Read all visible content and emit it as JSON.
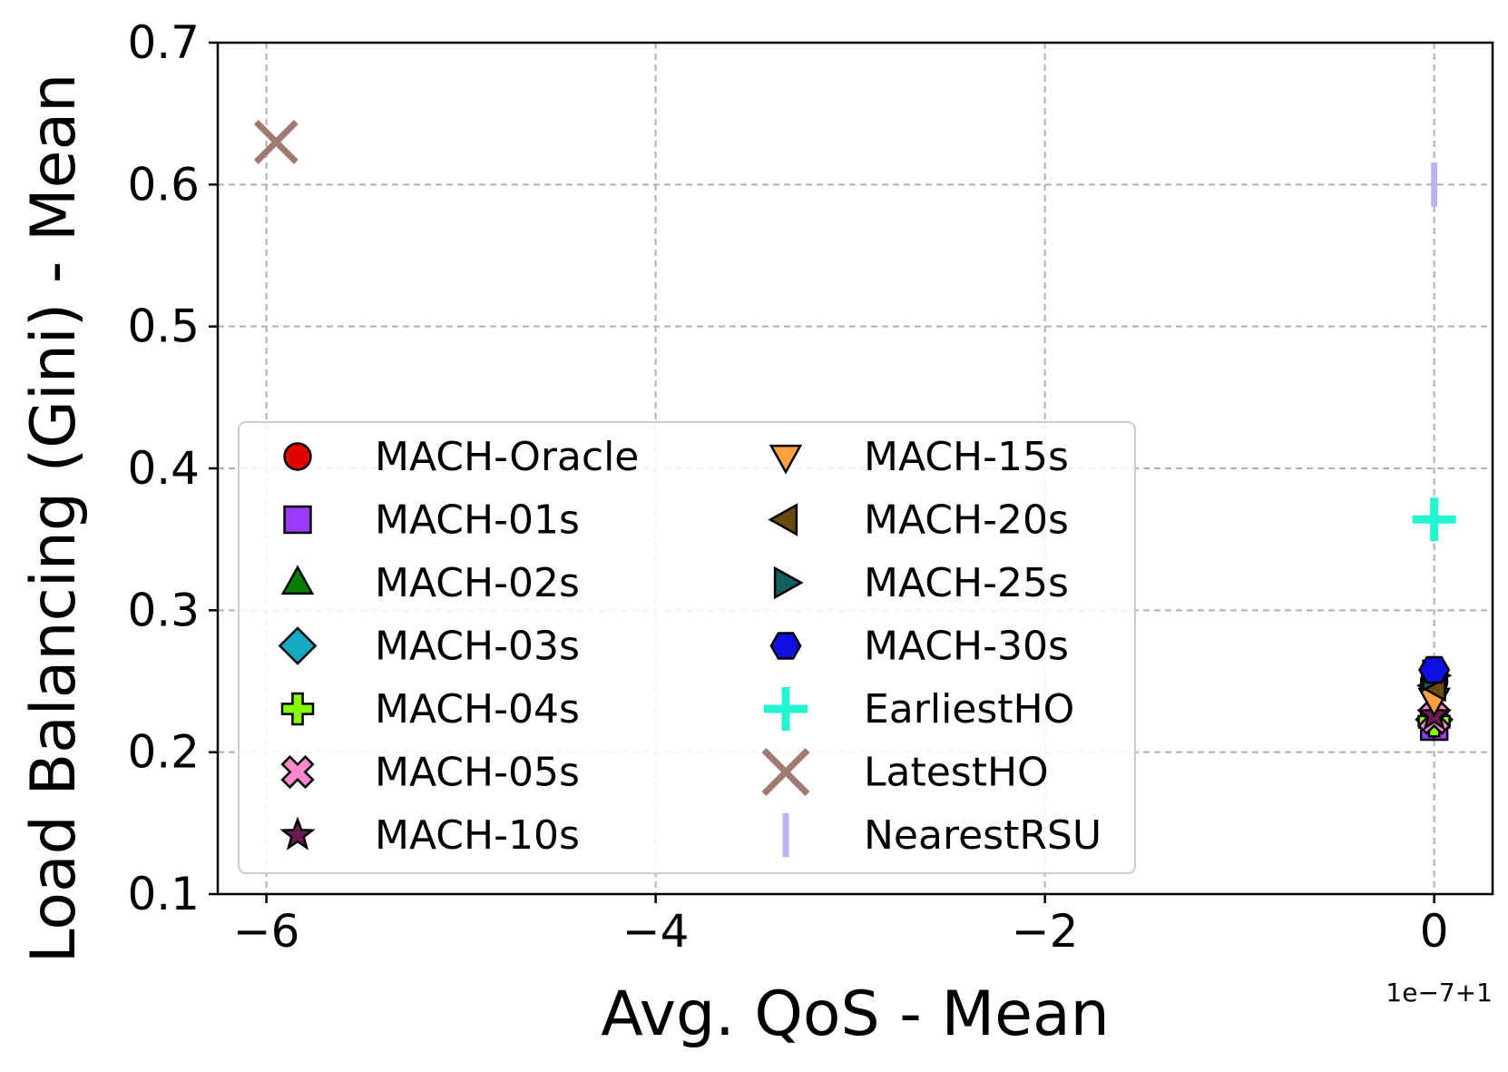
{
  "chart_data": {
    "type": "scatter",
    "xlabel": "Avg. QoS - Mean",
    "ylabel": "Load Balancing (Gini) - Mean",
    "x_offset_label": "1e−7+1",
    "xlim": [
      -6.25,
      0.3
    ],
    "ylim": [
      0.1,
      0.7
    ],
    "x_ticks": [
      -6,
      -4,
      -2,
      0
    ],
    "x_tick_labels": [
      "−6",
      "−4",
      "−2",
      "0"
    ],
    "y_ticks": [
      0.1,
      0.2,
      0.3,
      0.4,
      0.5,
      0.6,
      0.7
    ],
    "y_tick_labels": [
      "0.1",
      "0.2",
      "0.3",
      "0.4",
      "0.5",
      "0.6",
      "0.7"
    ],
    "grid": true,
    "legend_position": "lower-left",
    "series": [
      {
        "name": "MACH-Oracle",
        "marker": "circle",
        "color": "#e00000",
        "x": 0,
        "y": 0.25
      },
      {
        "name": "MACH-01s",
        "marker": "square",
        "color": "#9b3bff",
        "x": 0,
        "y": 0.218
      },
      {
        "name": "MACH-02s",
        "marker": "triangle-up",
        "color": "#008000",
        "x": 0,
        "y": 0.225
      },
      {
        "name": "MACH-03s",
        "marker": "diamond",
        "color": "#17a8c4",
        "x": 0,
        "y": 0.223
      },
      {
        "name": "MACH-04s",
        "marker": "plus-filled",
        "color": "#88ff00",
        "x": 0,
        "y": 0.222
      },
      {
        "name": "MACH-05s",
        "marker": "x-filled",
        "color": "#ff88cc",
        "x": 0,
        "y": 0.224
      },
      {
        "name": "MACH-10s",
        "marker": "star",
        "color": "#6a1b50",
        "x": 0,
        "y": 0.226
      },
      {
        "name": "MACH-15s",
        "marker": "triangle-down",
        "color": "#ffa040",
        "x": 0,
        "y": 0.237
      },
      {
        "name": "MACH-20s",
        "marker": "triangle-left",
        "color": "#6b4a0f",
        "x": 0,
        "y": 0.247
      },
      {
        "name": "MACH-25s",
        "marker": "triangle-right",
        "color": "#135e5e",
        "x": 0,
        "y": 0.254
      },
      {
        "name": "MACH-30s",
        "marker": "hexagon",
        "color": "#1010e0",
        "x": 0,
        "y": 0.258
      },
      {
        "name": "EarliestHO",
        "marker": "plus",
        "color": "#22f5d0",
        "x": 0,
        "y": 0.364
      },
      {
        "name": "LatestHO",
        "marker": "x",
        "color": "#a07a70",
        "x": -5.95,
        "y": 0.63
      },
      {
        "name": "NearestRSU",
        "marker": "vline",
        "color": "#b8b6f2",
        "x": 0,
        "y": 0.6
      }
    ]
  }
}
